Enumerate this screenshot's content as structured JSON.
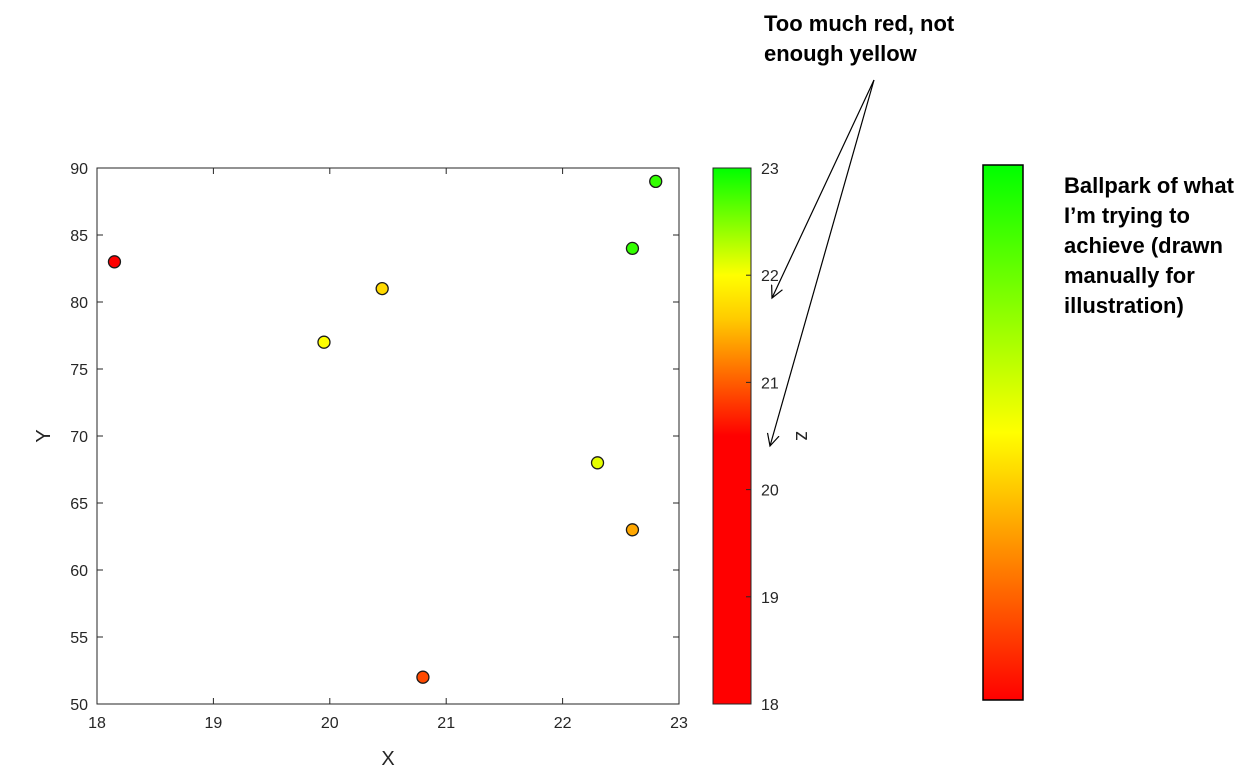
{
  "chart_data": {
    "type": "scatter",
    "xlabel": "X",
    "ylabel": "Y",
    "xlim": [
      18,
      23
    ],
    "ylim": [
      50,
      90
    ],
    "xticks": [
      18,
      19,
      20,
      21,
      22,
      23
    ],
    "yticks": [
      50,
      55,
      60,
      65,
      70,
      75,
      80,
      85,
      90
    ],
    "grid": false,
    "points": [
      {
        "x": 18.15,
        "y": 83,
        "z": 18.4
      },
      {
        "x": 19.95,
        "y": 77,
        "z": 22.0
      },
      {
        "x": 20.45,
        "y": 81,
        "z": 21.7
      },
      {
        "x": 20.8,
        "y": 52,
        "z": 20.9
      },
      {
        "x": 22.3,
        "y": 68,
        "z": 22.1
      },
      {
        "x": 22.6,
        "y": 63,
        "z": 21.4
      },
      {
        "x": 22.6,
        "y": 84,
        "z": 22.8
      },
      {
        "x": 22.8,
        "y": 89,
        "z": 22.8
      }
    ],
    "colorbar": {
      "label": "z",
      "range": [
        18,
        23
      ],
      "ticks": [
        18,
        19,
        20,
        21,
        22,
        23
      ],
      "colormap": [
        {
          "z": 18,
          "color": "#ff0000"
        },
        {
          "z": 20.5,
          "color": "#ff0000"
        },
        {
          "z": 21.6,
          "color": "#ffcc00"
        },
        {
          "z": 22,
          "color": "#ffff00"
        },
        {
          "z": 23,
          "color": "#00ff00"
        }
      ]
    },
    "reference_colorbar": {
      "colormap": [
        {
          "pos": 0,
          "color": "#ff0000"
        },
        {
          "pos": 0.5,
          "color": "#ffff00"
        },
        {
          "pos": 1,
          "color": "#00ff00"
        }
      ]
    },
    "annotations": {
      "top_note": "Too much red, not enough yellow",
      "right_note": "Ballpark of what I’m trying to achieve (drawn manually for illustration)"
    }
  }
}
